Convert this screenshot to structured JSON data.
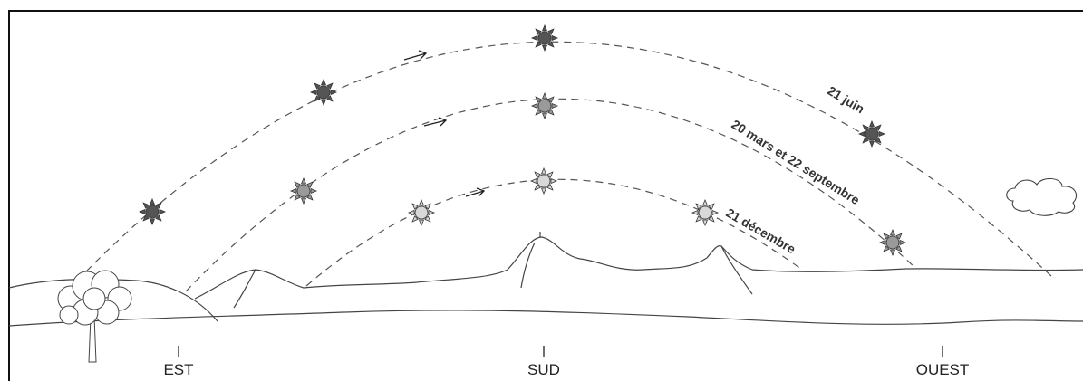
{
  "directions": {
    "east": "EST",
    "south": "SUD",
    "west": "OUEST"
  },
  "paths": {
    "summer": "21 juin",
    "equinox": "20 mars et 22 septembre",
    "winter": "21 décembre"
  },
  "colors": {
    "summer_sun": "#555555",
    "equinox_sun": "#9a9a9a",
    "winter_sun": "#d8d8d8",
    "sun_stroke": "#333333"
  },
  "icons": {
    "sun": "sun-icon",
    "tree": "tree-icon",
    "cloud": "cloud-icon",
    "arrow": "arrow-icon"
  }
}
